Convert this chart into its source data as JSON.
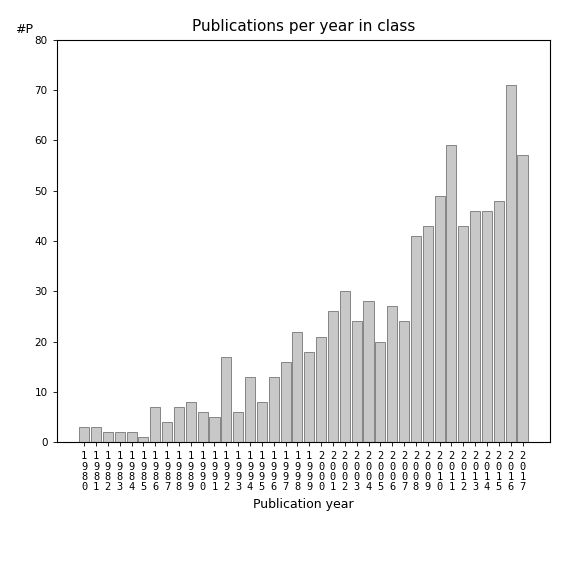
{
  "title": "Publications per year in class",
  "xlabel": "Publication year",
  "ylabel": "#P",
  "years": [
    "1980",
    "1981",
    "1982",
    "1983",
    "1984",
    "1985",
    "1986",
    "1987",
    "1988",
    "1989",
    "1990",
    "1991",
    "1992",
    "1993",
    "1994",
    "1995",
    "1996",
    "1997",
    "1998",
    "1999",
    "2000",
    "2001",
    "2002",
    "2003",
    "2004",
    "2005",
    "2006",
    "2007",
    "2008",
    "2009",
    "2010",
    "2011",
    "2012",
    "2013",
    "2014",
    "2015",
    "2016",
    "2017"
  ],
  "values": [
    3,
    3,
    2,
    2,
    2,
    1,
    7,
    4,
    7,
    8,
    6,
    5,
    17,
    6,
    13,
    8,
    13,
    16,
    22,
    18,
    21,
    26,
    30,
    24,
    28,
    20,
    27,
    24,
    41,
    43,
    49,
    59,
    43,
    46,
    46,
    48,
    71,
    57
  ],
  "bar_color": "#c8c8c8",
  "bar_edgecolor": "#606060",
  "ylim": [
    0,
    80
  ],
  "yticks": [
    0,
    10,
    20,
    30,
    40,
    50,
    60,
    70,
    80
  ],
  "background_color": "#ffffff",
  "title_fontsize": 11,
  "axis_label_fontsize": 9,
  "tick_fontsize": 7.5
}
